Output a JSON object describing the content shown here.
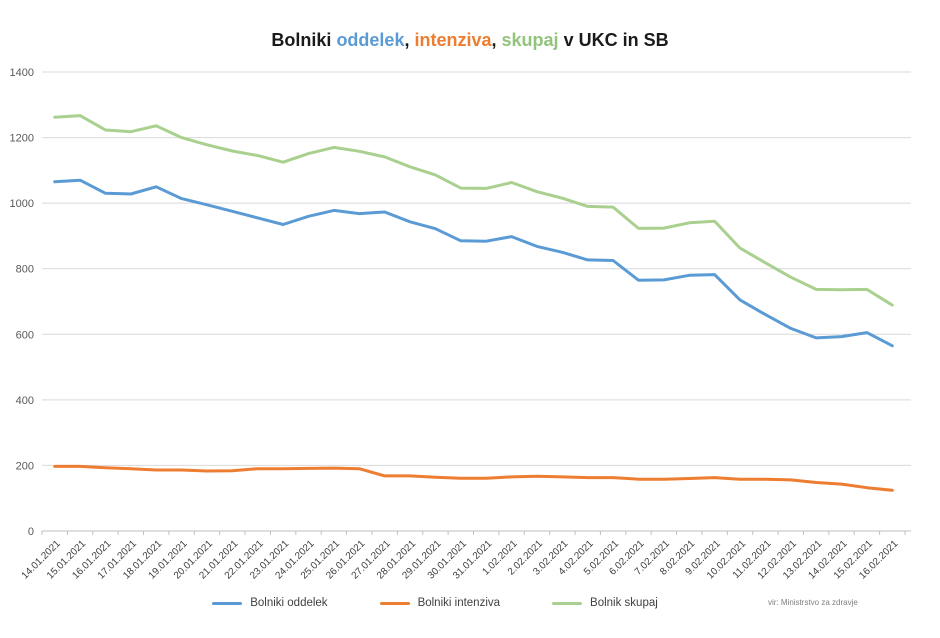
{
  "title": {
    "segments": [
      {
        "text": "Bolniki ",
        "color": "#1a1a1a"
      },
      {
        "text": "oddelek",
        "color": "#5B9BD5"
      },
      {
        "text": ", ",
        "color": "#1a1a1a"
      },
      {
        "text": "intenziva",
        "color": "#ED7D31"
      },
      {
        "text": ", ",
        "color": "#1a1a1a"
      },
      {
        "text": "skupaj",
        "color": "#93C47D"
      },
      {
        "text": " v UKC in SB",
        "color": "#1a1a1a"
      }
    ]
  },
  "chart_data": {
    "type": "line",
    "title": "Bolniki oddelek, intenziva, skupaj v UKC in SB",
    "categories": [
      "14.01.2021",
      "15.01.2021",
      "16.01.2021",
      "17.01.2021",
      "18.01.2021",
      "19.01.2021",
      "20.01.2021",
      "21.01.2021",
      "22.01.2021",
      "23.01.2021",
      "24.01.2021",
      "25.01.2021",
      "26.01.2021",
      "27.01.2021",
      "28.01.2021",
      "29.01.2021",
      "30.01.2021",
      "31.01.2021",
      "1.02.2021",
      "2.02.2021",
      "3.02.2021",
      "4.02.2021",
      "5.02.2021",
      "6.02.2021",
      "7.02.2021",
      "8.02.2021",
      "9.02.2021",
      "10.02.2021",
      "11.02.2021",
      "12.02.2021",
      "13.02.2021",
      "14.02.2021",
      "15.02.2021",
      "16.02.2021"
    ],
    "series": [
      {
        "name": "Bolniki oddelek",
        "color": "#5B9BD5",
        "values": [
          1065,
          1070,
          1030,
          1028,
          1050,
          1014,
          995,
          975,
          955,
          935,
          960,
          978,
          968,
          973,
          943,
          922,
          885,
          884,
          898,
          868,
          850,
          827,
          825,
          765,
          766,
          780,
          782,
          705,
          660,
          618,
          589,
          593,
          605,
          565
        ]
      },
      {
        "name": "Bolniki intenziva",
        "color": "#ED7D31",
        "values": [
          197,
          197,
          193,
          190,
          186,
          186,
          183,
          184,
          190,
          190,
          191,
          192,
          190,
          168,
          168,
          164,
          161,
          161,
          165,
          167,
          165,
          163,
          163,
          158,
          158,
          160,
          163,
          158,
          158,
          156,
          148,
          143,
          132,
          124
        ]
      },
      {
        "name": "Bolnik skupaj",
        "color": "#A9D08E",
        "values": [
          1262,
          1267,
          1223,
          1218,
          1236,
          1200,
          1178,
          1159,
          1145,
          1125,
          1151,
          1170,
          1158,
          1141,
          1111,
          1086,
          1046,
          1045,
          1063,
          1035,
          1015,
          990,
          988,
          923,
          924,
          940,
          945,
          863,
          818,
          774,
          737,
          736,
          737,
          689
        ]
      }
    ],
    "ylim": [
      0,
      1400
    ],
    "ytick_step": 200,
    "grid": true,
    "legend_position": "bottom"
  },
  "legend": {
    "items": [
      {
        "label": "Bolniki oddelek",
        "color": "#5B9BD5"
      },
      {
        "label": "Bolniki intenziva",
        "color": "#ED7D31"
      },
      {
        "label": "Bolnik skupaj",
        "color": "#A9D08E"
      }
    ]
  },
  "source_note": "vir: Ministrstvo za zdravje",
  "colors": {
    "background": "#FFFFFF",
    "gridline": "#D9D9D9",
    "axis_line": "#BFBFBF",
    "tick_label": "#595959"
  }
}
